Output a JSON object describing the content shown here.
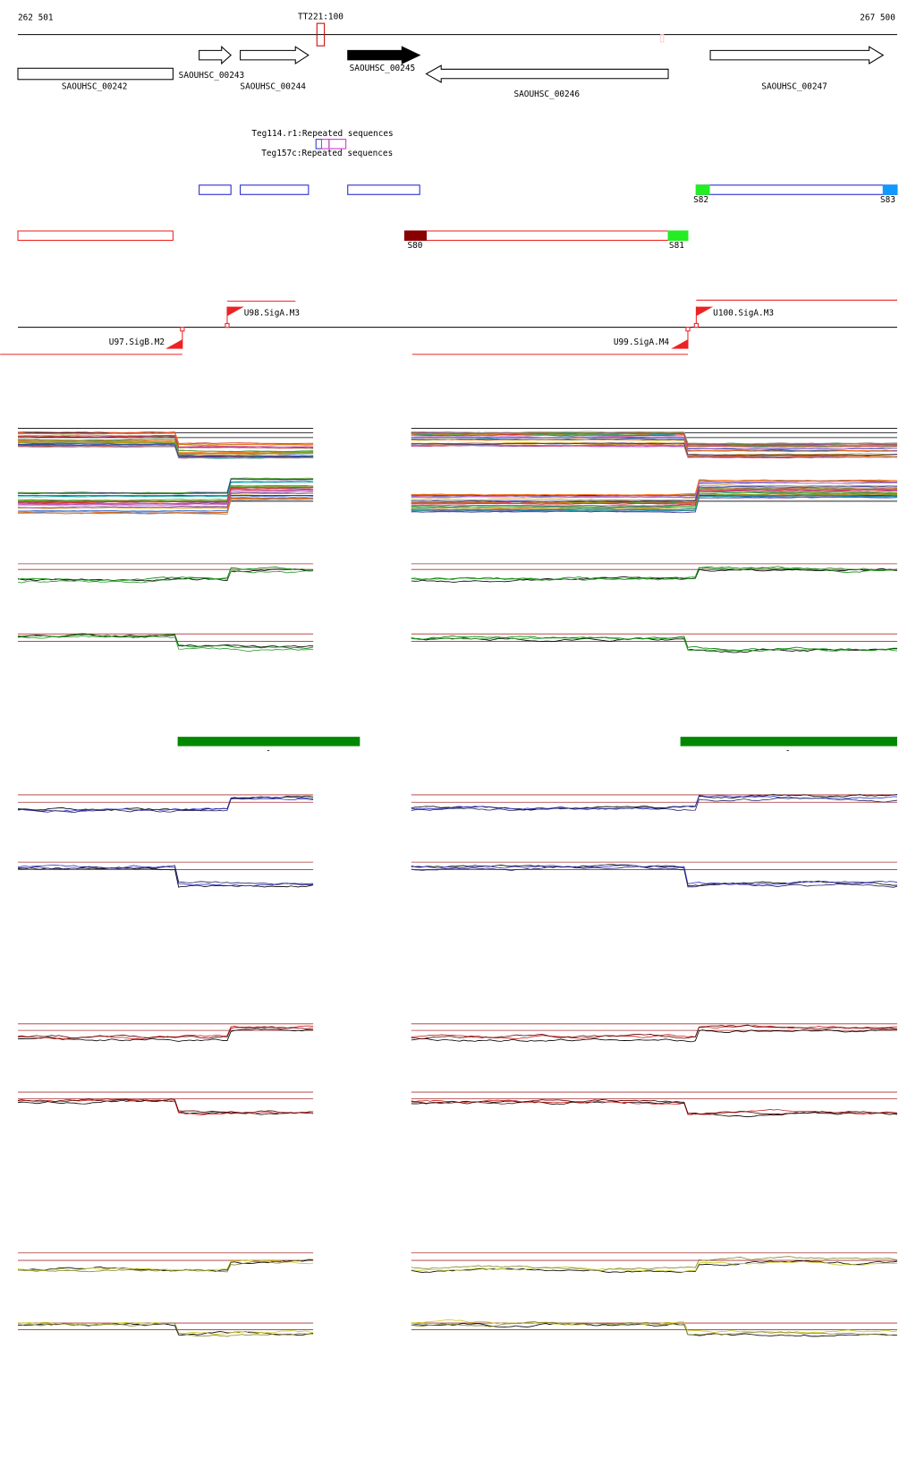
{
  "ruler": {
    "start": "262 501",
    "end": "267 500",
    "marker": "TT221:100"
  },
  "genes": [
    "SAOUHSC_00242",
    "SAOUHSC_00243",
    "SAOUHSC_00244",
    "SAOUHSC_00245",
    "SAOUHSC_00246",
    "SAOUHSC_00247"
  ],
  "repeats": [
    "Teg114.r1:Repeated sequences",
    "Teg157c:Repeated sequences"
  ],
  "segments": [
    "S80",
    "S81",
    "S82",
    "S83"
  ],
  "promoters": [
    "U97.SigB.M2",
    "U98.SigA.M3",
    "U99.SigA.M4",
    "U100.SigA.M3"
  ],
  "region_marks": [
    "-",
    "-"
  ]
}
